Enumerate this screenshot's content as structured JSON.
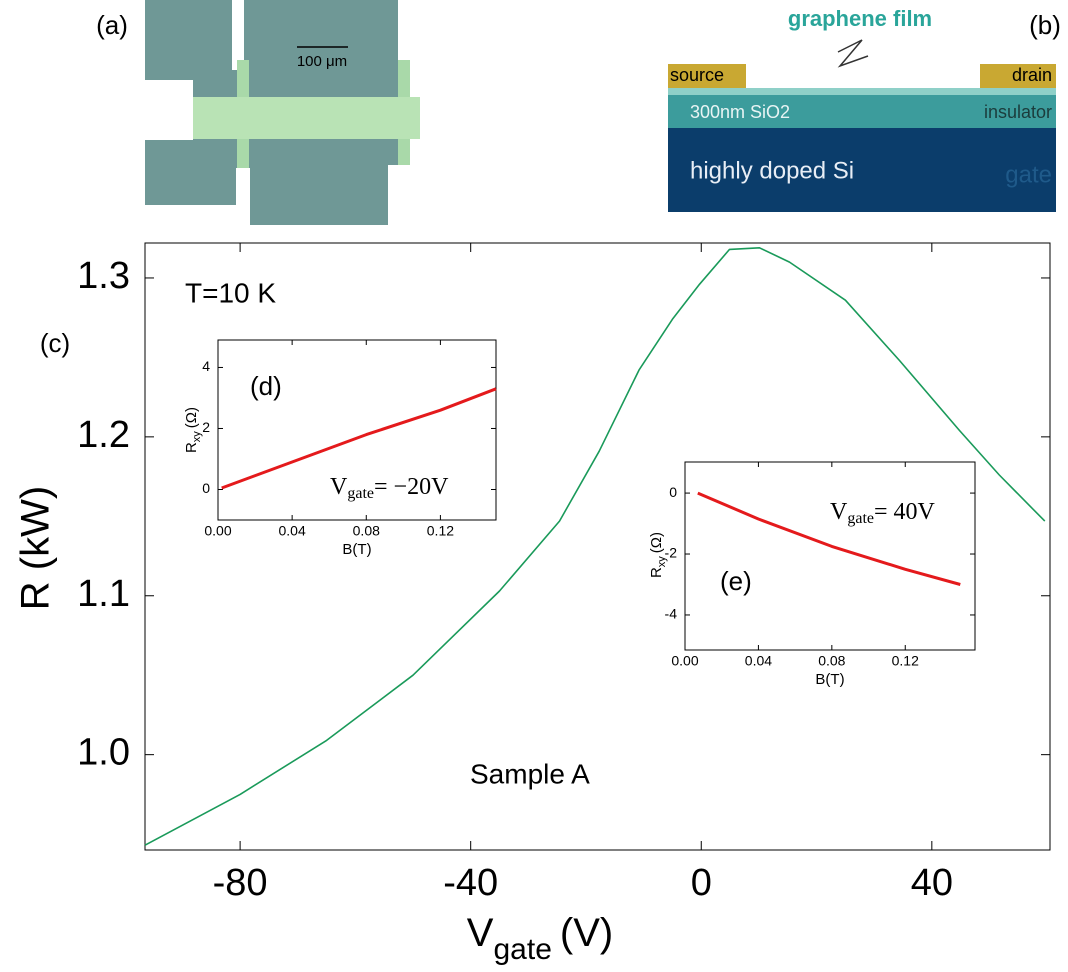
{
  "figure": {
    "panel_a": {
      "label": "(a)",
      "scale_bar": "100 μm"
    },
    "panel_b": {
      "label": "(b)",
      "film": "graphene film",
      "source": "source",
      "drain": "drain",
      "oxide": "300nm SiO2",
      "insulator": "insulator",
      "substrate": "highly doped Si",
      "gate": "gate"
    },
    "panel_c_label": "(c)"
  },
  "chart_data": [
    {
      "type": "line",
      "x": [
        -96.5,
        -80,
        -65,
        -50,
        -35,
        -24.6,
        -17.7,
        -10.8,
        -5,
        -0.3,
        4.9,
        10.1,
        15.3,
        25,
        34.4,
        44.8,
        51.7,
        59.6
      ],
      "series": [
        {
          "color": "#1a9a5a",
          "values": [
            0.943,
            0.975,
            1.009,
            1.05,
            1.103,
            1.147,
            1.191,
            1.242,
            1.274,
            1.296,
            1.318,
            1.319,
            1.31,
            1.286,
            1.248,
            1.204,
            1.176,
            1.147
          ]
        }
      ],
      "xlim": [
        -96.5,
        60.5
      ],
      "ylim": [
        0.94,
        1.322
      ],
      "xticks": [
        -80,
        -40,
        0,
        40
      ],
      "yticks": [
        {
          "value": 1,
          "label": "1.0"
        },
        1.1,
        1.2,
        1.3
      ],
      "xlabel": {
        "main": "V",
        "sub": "gate",
        "unit": "(V)"
      },
      "ylabel": "R (kW)",
      "annotations": [
        "T=10 K",
        "Sample A"
      ]
    },
    {
      "type": "line",
      "label": "(d)",
      "x": [
        0.002,
        0.04,
        0.08,
        0.12,
        0.15
      ],
      "series": [
        {
          "color": "#e41a1c",
          "values": [
            0.05,
            0.9,
            1.8,
            2.6,
            3.3
          ]
        }
      ],
      "xlim": [
        0,
        0.15
      ],
      "ylim": [
        -1,
        4.9
      ],
      "xticks": [
        {
          "value": 0,
          "label": "0.00"
        },
        0.04,
        0.08,
        0.12
      ],
      "yticks": [
        0,
        2,
        4
      ],
      "xlabel": "B(T)",
      "ylabel": {
        "main": "R",
        "sub": "xy",
        "unit": "(Ω)"
      },
      "annotation": {
        "main": "V",
        "sub": "gate",
        "rest": "= −20V"
      }
    },
    {
      "type": "line",
      "label": "(e)",
      "x": [
        0.007,
        0.04,
        0.08,
        0.12,
        0.15
      ],
      "series": [
        {
          "color": "#e41a1c",
          "values": [
            0,
            -0.85,
            -1.75,
            -2.5,
            -3.0
          ]
        }
      ],
      "xlim": [
        0,
        0.158
      ],
      "ylim": [
        -5.15,
        1.02
      ],
      "xticks": [
        {
          "value": 0,
          "label": "0.00"
        },
        0.04,
        0.08,
        0.12
      ],
      "yticks": [
        0,
        -2,
        -4
      ],
      "xlabel": "B(T)",
      "ylabel": {
        "main": "R",
        "sub": "xy",
        "unit": "(Ω)"
      },
      "annotation": {
        "main": "V",
        "sub": "gate",
        "rest": "= 40V"
      }
    }
  ]
}
